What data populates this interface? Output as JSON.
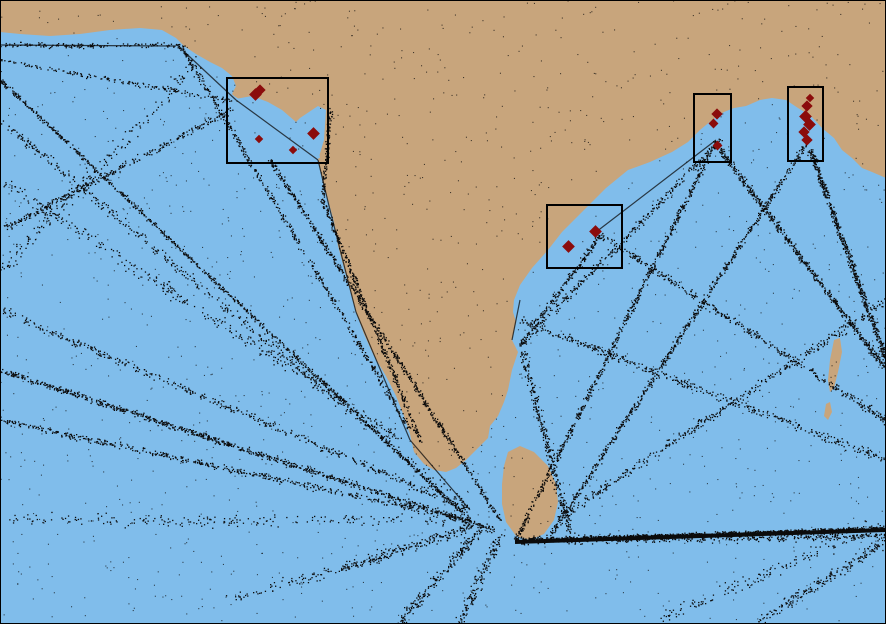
{
  "map": {
    "colors": {
      "sea": "#80bdeb",
      "land": "#c8a57c",
      "track": "#0b0b0b",
      "marker": "#8b0c0c",
      "box": "#000000",
      "frame": "#000000"
    },
    "shipping_lanes_visible": true,
    "highlight_boxes": [
      {
        "id": "gulf-of-kachchh"
      },
      {
        "id": "andhra-pradesh-coast"
      },
      {
        "id": "odisha-coast"
      },
      {
        "id": "west-bengal-coast"
      }
    ],
    "port_markers": [
      {
        "box": "gulf-of-kachchh",
        "count": 5
      },
      {
        "box": "andhra-pradesh-coast",
        "count": 2
      },
      {
        "box": "odisha-coast",
        "count": 3
      },
      {
        "box": "west-bengal-coast",
        "count": 6
      }
    ]
  }
}
